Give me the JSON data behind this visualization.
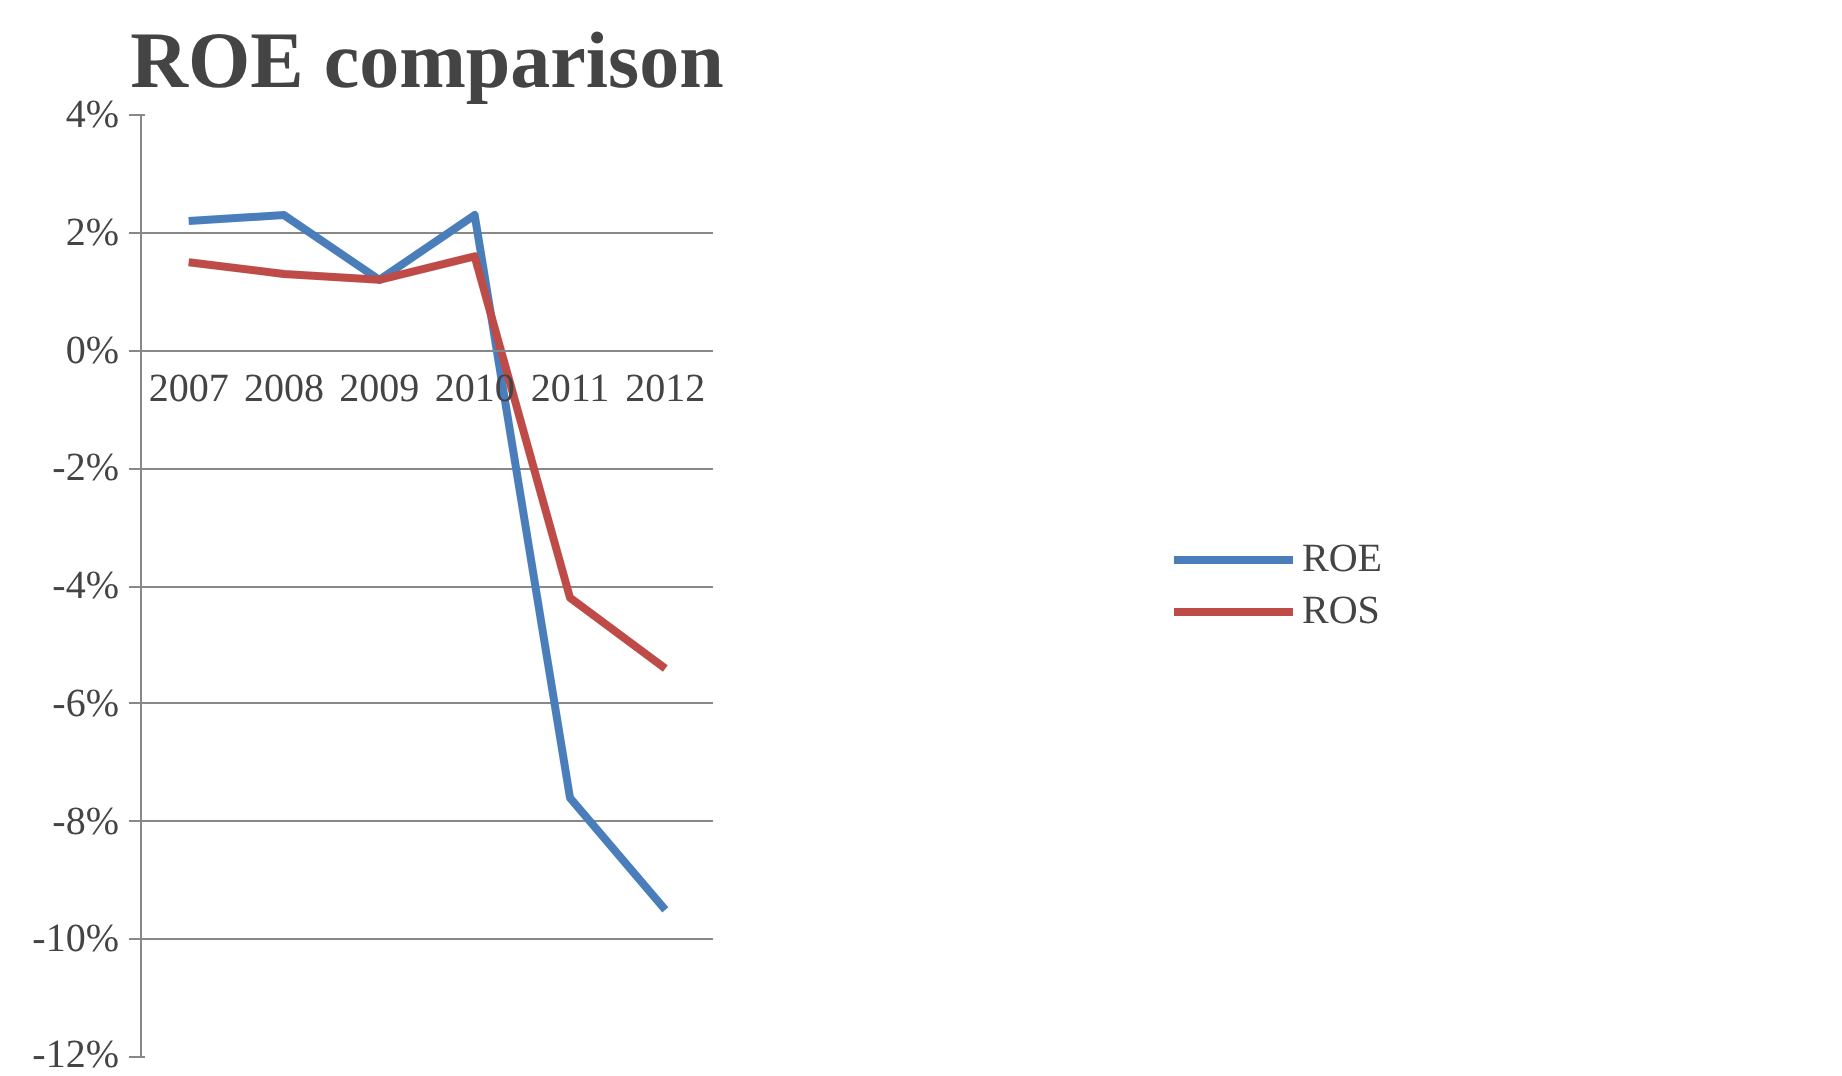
{
  "chart_data": {
    "type": "line",
    "title": "ROE comparison",
    "categories": [
      "2007",
      "2008",
      "2009",
      "2010",
      "2011",
      "2012"
    ],
    "series": [
      {
        "name": "ROE",
        "color": "#4a7ebb",
        "values": [
          2.2,
          2.3,
          1.2,
          2.3,
          -7.6,
          -9.5
        ]
      },
      {
        "name": "ROS",
        "color": "#be4b48",
        "values": [
          1.5,
          1.3,
          1.2,
          1.6,
          -4.2,
          -5.4
        ]
      }
    ],
    "ylim": [
      -12,
      4
    ],
    "yticks": [
      {
        "value": -12,
        "label": "-12%"
      },
      {
        "value": -10,
        "label": "-10%"
      },
      {
        "value": -8,
        "label": "-8%"
      },
      {
        "value": -6,
        "label": "-6%"
      },
      {
        "value": -4,
        "label": "-4%"
      },
      {
        "value": -2,
        "label": "-2%"
      },
      {
        "value": 0,
        "label": "0%"
      },
      {
        "value": 2,
        "label": "2%"
      },
      {
        "value": 4,
        "label": "4%"
      }
    ],
    "grid": "y",
    "legend": "right",
    "marker": "none",
    "line_style": "solid"
  }
}
